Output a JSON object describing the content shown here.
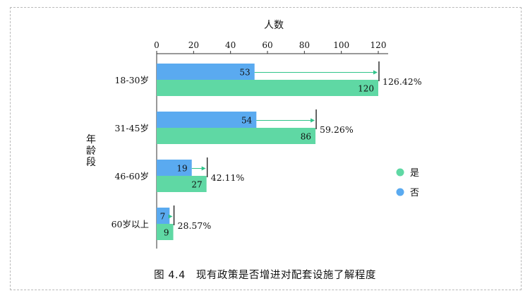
{
  "chart_data": {
    "type": "bar",
    "orientation": "horizontal",
    "xlabel": "人数",
    "ylabel": "年龄段",
    "xlim": [
      0,
      120
    ],
    "x_ticks": [
      "0",
      "20",
      "40",
      "60",
      "80",
      "100",
      "120"
    ],
    "categories": [
      "18-30岁",
      "31-45岁",
      "46-60岁",
      "60岁以上"
    ],
    "series": [
      {
        "name": "否",
        "color": "#5aaaf0",
        "values": [
          53,
          54,
          19,
          7
        ]
      },
      {
        "name": "是",
        "color": "#5fd8a4",
        "values": [
          120,
          86,
          27,
          9
        ]
      }
    ],
    "annotations": [
      "126.42%",
      "59.26%",
      "42.11%",
      "28.57%"
    ],
    "legend_position": "right",
    "legend": [
      {
        "label": "是",
        "color": "#5fd8a4"
      },
      {
        "label": "否",
        "color": "#5aaaf0"
      }
    ]
  },
  "caption": "图 4.4　现有政策是否增进对配套设施了解程度"
}
